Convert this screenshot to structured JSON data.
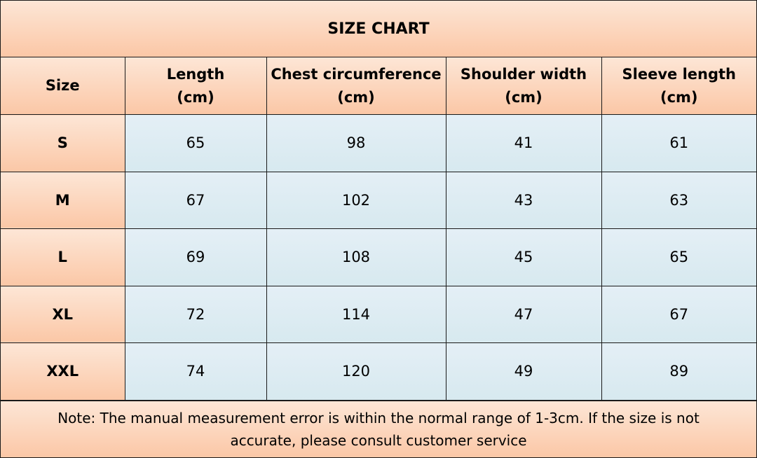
{
  "title": "SIZE CHART",
  "columns": [
    "Size",
    "Length\n(cm)",
    "Chest circumference\n(cm)",
    "Shoulder width\n(cm)",
    "Sleeve length\n(cm)"
  ],
  "rows": [
    {
      "size": "S",
      "length": "65",
      "chest": "98",
      "shoulder": "41",
      "sleeve": "61"
    },
    {
      "size": "M",
      "length": "67",
      "chest": "102",
      "shoulder": "43",
      "sleeve": "63"
    },
    {
      "size": "L",
      "length": "69",
      "chest": "108",
      "shoulder": "45",
      "sleeve": "65"
    },
    {
      "size": "XL",
      "length": "72",
      "chest": "114",
      "shoulder": "47",
      "sleeve": "67"
    },
    {
      "size": "XXL",
      "length": "74",
      "chest": "120",
      "shoulder": "49",
      "sleeve": "89"
    }
  ],
  "note": "Note: The manual measurement error is within the normal range of 1-3cm. If the size is not accurate, please consult customer service",
  "colors": {
    "header_fill_top": "#fde6d6",
    "header_fill_bottom": "#fbc7a6",
    "cell_fill_top": "#e4eff6",
    "cell_fill_bottom": "#d7e9ef",
    "border": "#1a1a1a"
  }
}
